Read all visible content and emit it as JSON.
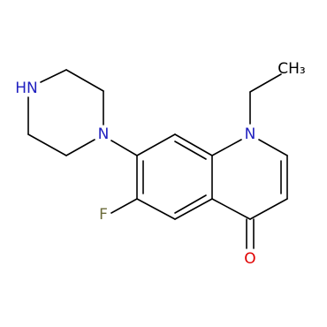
{
  "atoms": [
    {
      "label": "CH₃"
    },
    {
      "label": "N"
    },
    {
      "label": "N"
    },
    {
      "label": "HN"
    },
    {
      "label": "F"
    },
    {
      "label": "O"
    }
  ]
}
